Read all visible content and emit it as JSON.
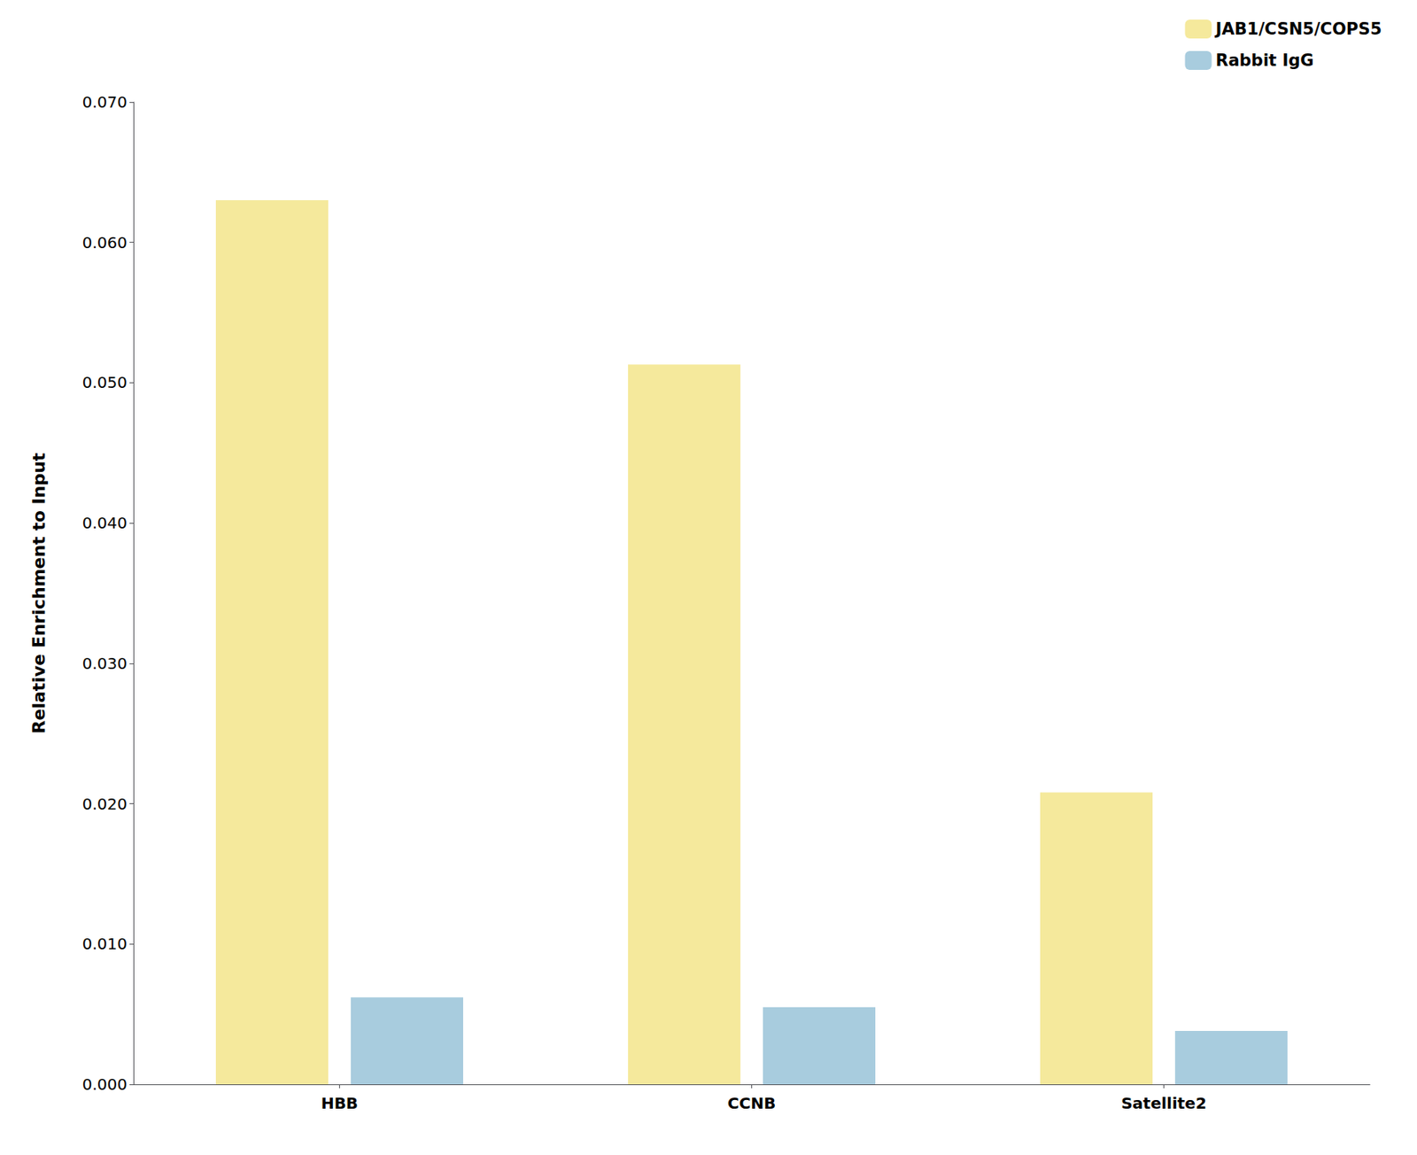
{
  "chart_data": {
    "type": "bar",
    "categories": [
      "HBB",
      "CCNB",
      "Satellite2"
    ],
    "series": [
      {
        "name": "JAB1/CSN5/COPS5",
        "color": "#F5E99C",
        "values": [
          0.063,
          0.0513,
          0.0208
        ]
      },
      {
        "name": "Rabbit IgG",
        "color": "#A8CCDE",
        "values": [
          0.0062,
          0.0055,
          0.0038
        ]
      }
    ],
    "ylabel": "Relative Enrichment to Input",
    "ylim": [
      0,
      0.07
    ],
    "yticks": [
      {
        "value": 0,
        "label": "0.000"
      },
      {
        "value": 0.01,
        "label": "0.010"
      },
      {
        "value": 0.02,
        "label": "0.020"
      },
      {
        "value": 0.03,
        "label": "0.030"
      },
      {
        "value": 0.04,
        "label": "0.040"
      },
      {
        "value": 0.05,
        "label": "0.050"
      },
      {
        "value": 0.06,
        "label": "0.060"
      },
      {
        "value": 0.07,
        "label": "0.070"
      }
    ],
    "grid": false,
    "legend": "upper right"
  }
}
